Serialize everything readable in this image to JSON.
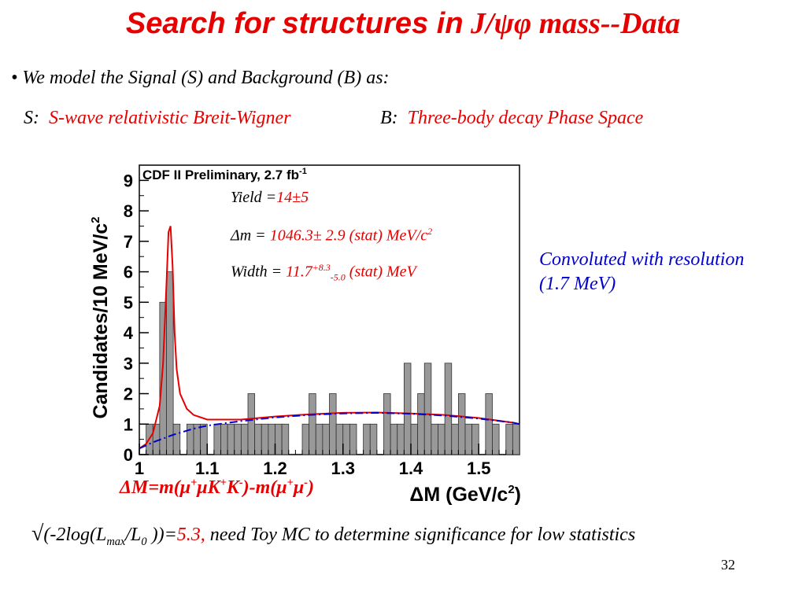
{
  "slide": {
    "title_part1": "Search for structures in",
    "title_part2": "J/ψφ",
    "title_part3": "mass--Data",
    "bullet": "We model the Signal (S) and Background (B) as:",
    "s_label": "S:",
    "s_text": "S-wave relativistic Breit-Wigner",
    "b_label": "B:",
    "b_text": "Three-body decay Phase Space",
    "convolution_line1": "Convoluted with resolution",
    "convolution_line2": "(1.7 MeV)",
    "fit": {
      "yield_label": "Yield    =",
      "yield_value": "14±5",
      "dm_label": "Δm     =",
      "dm_value": "1046.3± 2.9 (stat)   MeV/c",
      "dm_sup": "2",
      "width_label": "Width =",
      "width_value": "11.7",
      "width_sup": "+8.3",
      "width_sub": "-5.0",
      "width_suffix": " (stat)    MeV"
    },
    "xexpr": {
      "p1": "ΔM=m(μ",
      "s1": "+",
      "p2": "μK",
      "s2": "+",
      "p3": "K",
      "s3": "-",
      "p4": ")-m(μ",
      "s4": "+",
      "p5": "μ",
      "s5": "-",
      "p6": ")"
    },
    "footer": {
      "sqrt": "√",
      "p1": "(-2log(L",
      "sub1": "max",
      "p2": "/L",
      "sub2": "0",
      "p3": " ))=",
      "value": "5.3,",
      "p4": "  need Toy MC to determine significance for low statistics"
    },
    "page_number": "32"
  },
  "colors": {
    "title": "#e60000",
    "signal_text": "#e60000",
    "convolution_text": "#0000cc",
    "fit_curve": "#e60000",
    "background_curve": "#0000cc",
    "histogram_fill": "#999999"
  },
  "chart_data": {
    "type": "bar",
    "plot_title": "CDF II Preliminary, 2.7 fb",
    "plot_title_sup": "-1",
    "ylabel": "Candidates/10 MeV/c",
    "ylabel_sup": "2",
    "xlabel": "ΔM   (GeV/c",
    "xlabel_sup": "2",
    "xlabel_tail": ")",
    "xlim": [
      1.0,
      1.56
    ],
    "ylim": [
      0,
      9.5
    ],
    "xticks": [
      1,
      1.1,
      1.2,
      1.3,
      1.4,
      1.5
    ],
    "xtick_labels": [
      "1",
      "1.1",
      "1.2",
      "1.3",
      "1.4",
      "1.5"
    ],
    "yticks": [
      0,
      1,
      2,
      3,
      4,
      5,
      6,
      7,
      8,
      9
    ],
    "ytick_labels": [
      "0",
      "1",
      "2",
      "3",
      "4",
      "5",
      "6",
      "7",
      "8",
      "9"
    ],
    "bin_width": 0.01,
    "bin_starts": [
      1.0,
      1.01,
      1.02,
      1.03,
      1.04,
      1.05,
      1.06,
      1.07,
      1.08,
      1.09,
      1.1,
      1.11,
      1.12,
      1.13,
      1.14,
      1.15,
      1.16,
      1.17,
      1.18,
      1.19,
      1.2,
      1.21,
      1.22,
      1.23,
      1.24,
      1.25,
      1.26,
      1.27,
      1.28,
      1.29,
      1.3,
      1.31,
      1.32,
      1.33,
      1.34,
      1.35,
      1.36,
      1.37,
      1.38,
      1.39,
      1.4,
      1.41,
      1.42,
      1.43,
      1.44,
      1.45,
      1.46,
      1.47,
      1.48,
      1.49,
      1.5,
      1.51,
      1.52,
      1.53,
      1.54,
      1.55
    ],
    "counts": [
      0,
      1,
      1,
      5,
      6,
      1,
      0,
      1,
      1,
      1,
      0,
      1,
      1,
      1,
      1,
      1,
      2,
      1,
      1,
      1,
      1,
      1,
      0,
      0,
      1,
      2,
      1,
      1,
      2,
      1,
      1,
      1,
      0,
      1,
      1,
      0,
      2,
      1,
      1,
      3,
      1,
      2,
      3,
      1,
      1,
      3,
      1,
      2,
      1,
      1,
      0,
      2,
      1,
      0,
      1,
      1
    ],
    "series": [
      {
        "name": "",
        "kind": "fit_total_line",
        "color": "#e60000",
        "style": "solid",
        "x": [
          1.0,
          1.01,
          1.02,
          1.03,
          1.035,
          1.04,
          1.043,
          1.046,
          1.049,
          1.052,
          1.055,
          1.06,
          1.07,
          1.08,
          1.1,
          1.15,
          1.2,
          1.25,
          1.3,
          1.35,
          1.4,
          1.45,
          1.5,
          1.55,
          1.56
        ],
        "y": [
          0.2,
          0.35,
          0.7,
          1.6,
          3.0,
          5.6,
          7.3,
          7.5,
          6.2,
          4.0,
          2.8,
          2.0,
          1.5,
          1.3,
          1.15,
          1.15,
          1.25,
          1.32,
          1.37,
          1.38,
          1.35,
          1.3,
          1.2,
          1.05,
          1.0
        ]
      },
      {
        "name": "",
        "kind": "background_line",
        "color": "#0000cc",
        "style": "dashdot",
        "x": [
          1.0,
          1.02,
          1.05,
          1.08,
          1.1,
          1.15,
          1.2,
          1.25,
          1.3,
          1.35,
          1.4,
          1.45,
          1.5,
          1.55,
          1.56
        ],
        "y": [
          0.2,
          0.4,
          0.65,
          0.85,
          0.95,
          1.1,
          1.22,
          1.3,
          1.35,
          1.37,
          1.34,
          1.28,
          1.18,
          1.05,
          1.0
        ]
      }
    ]
  }
}
